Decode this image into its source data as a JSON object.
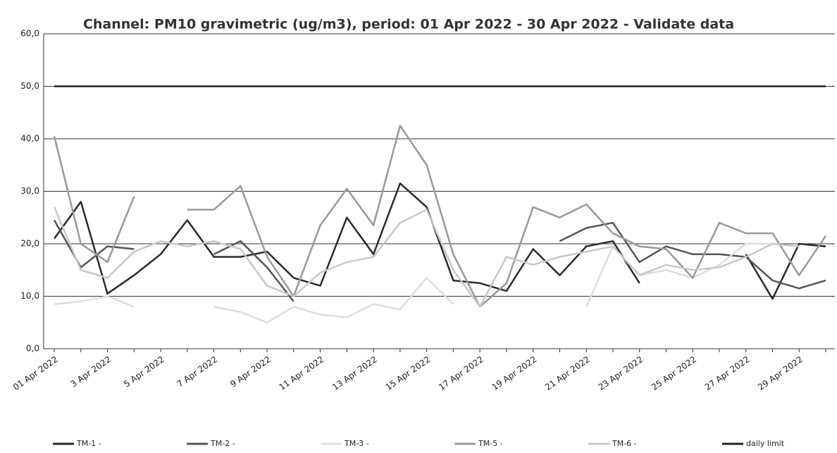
{
  "chart_data": {
    "type": "line",
    "title": "Channel: PM10 gravimetric (ug/m3), period: 01 Apr 2022 - 30 Apr 2022 - Validate data",
    "categories": [
      "01 Apr 2022",
      null,
      "3 Apr 2022",
      null,
      "5 Apr 2022",
      null,
      "7 Apr 2022",
      null,
      "9 Apr 2022",
      null,
      "11 Apr 2022",
      null,
      "13 Apr 2022",
      null,
      "15 Apr 2022",
      null,
      "17 Apr 2022",
      null,
      "19 Apr 2022",
      null,
      "21 Apr 2022",
      null,
      "23 Apr 2022",
      null,
      "25 Apr 2022",
      null,
      "27 Apr 2022",
      null,
      "29 Apr 2022",
      null
    ],
    "ylim": [
      0,
      60
    ],
    "yticks": [
      {
        "value": 0,
        "label": "0,0"
      },
      {
        "value": 10,
        "label": "10,0"
      },
      {
        "value": 20,
        "label": "20,0"
      },
      {
        "value": 30,
        "label": "30,0"
      },
      {
        "value": 40,
        "label": "40,0"
      },
      {
        "value": 50,
        "label": "50,0"
      },
      {
        "value": 60,
        "label": "60,0"
      }
    ],
    "grid": true,
    "series": [
      {
        "name": "TM-1 -",
        "color": "#2a2a2a",
        "values": [
          21,
          28,
          10.5,
          14,
          18,
          24.5,
          17.5,
          17.5,
          18.5,
          13.5,
          12,
          25,
          18,
          31.5,
          27,
          13,
          12.5,
          11,
          19,
          14,
          19.5,
          20.5,
          12.5,
          null,
          null,
          null,
          18,
          9.5,
          20,
          19.5
        ]
      },
      {
        "name": "TM-2 -",
        "color": "#555555",
        "values": [
          24.5,
          15.5,
          19.5,
          19,
          null,
          null,
          18,
          20.5,
          15.5,
          9,
          null,
          null,
          null,
          null,
          null,
          null,
          null,
          null,
          null,
          20.5,
          23,
          24,
          16.5,
          19.5,
          18,
          18,
          17.5,
          13,
          11.5,
          13
        ]
      },
      {
        "name": "TM-3 -",
        "color": "#dddddd",
        "values": [
          8.5,
          9,
          10,
          8,
          null,
          null,
          8,
          7,
          5,
          8,
          6.5,
          6,
          8.5,
          7.5,
          13.5,
          8.5,
          null,
          null,
          null,
          null,
          8,
          19.5,
          14,
          15,
          13.5,
          16,
          20,
          20,
          null,
          null
        ]
      },
      {
        "name": "TM-5 -",
        "color": "#999999",
        "values": [
          40.5,
          20,
          16.5,
          29,
          null,
          26.5,
          26.5,
          31,
          17.5,
          10,
          23.5,
          30.5,
          23.5,
          42.5,
          35,
          18,
          8,
          12.5,
          27,
          25,
          27.5,
          22,
          19.5,
          19,
          13.5,
          24,
          22,
          22,
          14,
          21.5
        ]
      },
      {
        "name": "TM-6 -",
        "color": "#c8c8c8",
        "values": [
          27,
          15,
          13.5,
          18.5,
          20.5,
          19.5,
          20.5,
          19,
          12,
          10,
          14.5,
          16.5,
          17.5,
          24,
          26.5,
          15,
          8,
          17.5,
          16,
          17.5,
          18.5,
          19.5,
          14,
          16,
          15,
          15.5,
          17.5,
          20,
          19.5,
          null
        ]
      },
      {
        "name": "daily limit",
        "color": "#222222",
        "values": [
          50,
          50,
          50,
          50,
          50,
          50,
          50,
          50,
          50,
          50,
          50,
          50,
          50,
          50,
          50,
          50,
          50,
          50,
          50,
          50,
          50,
          50,
          50,
          50,
          50,
          50,
          50,
          50,
          50,
          50
        ]
      }
    ]
  }
}
